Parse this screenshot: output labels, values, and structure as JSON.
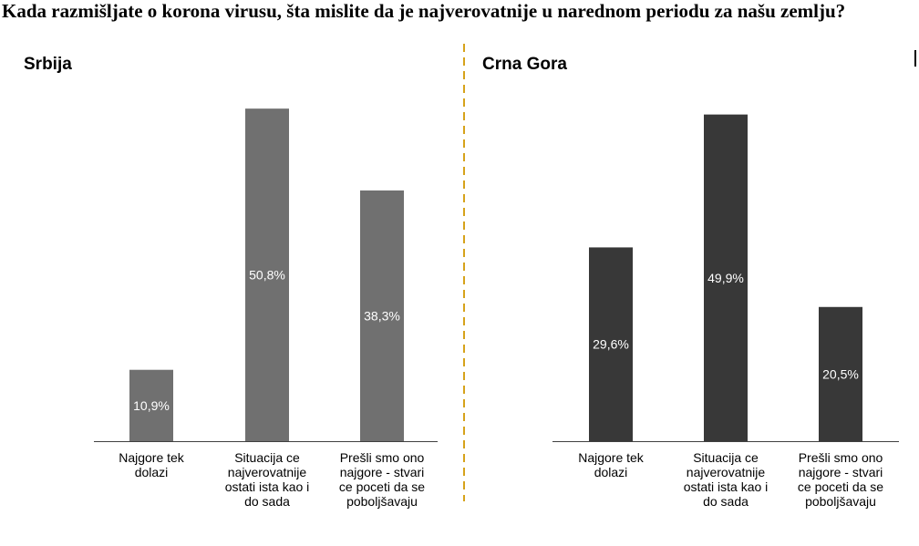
{
  "question": "Kada razmišljate o korona virusu, šta mislite da je najverovatnije u narednom periodu za našu zemlju?",
  "colors": {
    "srbija_bar": "#707070",
    "crna_gora_bar": "#383838",
    "axis": "#404040",
    "divider": "#D6A21A",
    "bar_label": "#ffffff"
  },
  "chart_data": [
    {
      "type": "bar",
      "title": "Srbija",
      "categories": [
        [
          "Najgore tek",
          "dolazi"
        ],
        [
          "Situacija ce",
          "najverovatnije",
          "ostati ista kao i",
          "do sada"
        ],
        [
          "Prešli smo ono",
          "najgore - stvari",
          "ce poceti da se",
          "poboljšavaju"
        ]
      ],
      "values": [
        10.9,
        50.8,
        38.3
      ],
      "data_labels": [
        "10,9%",
        "50,8%",
        "38,3%"
      ],
      "ylim": [
        0,
        55
      ],
      "grid": false,
      "legend": "none"
    },
    {
      "type": "bar",
      "title": "Crna Gora",
      "categories": [
        [
          "Najgore tek",
          "dolazi"
        ],
        [
          "Situacija ce",
          "najverovatnije",
          "ostati ista kao i",
          "do sada"
        ],
        [
          "Prešli smo ono",
          "najgore - stvari",
          "ce poceti da se",
          "poboljšavaju"
        ]
      ],
      "values": [
        29.6,
        49.9,
        20.5
      ],
      "data_labels": [
        "29,6%",
        "49,9%",
        "20,5%"
      ],
      "ylim": [
        0,
        55
      ],
      "grid": false,
      "legend": "none"
    }
  ]
}
